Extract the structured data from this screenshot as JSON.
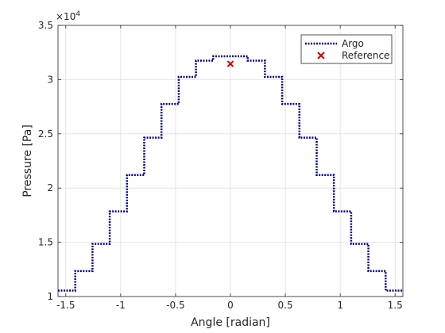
{
  "chart_data": {
    "type": "line",
    "xlabel": "Angle [radian]",
    "ylabel": "Pressure [Pa]",
    "xlim": [
      -1.5708,
      1.5708
    ],
    "ylim": [
      10000,
      35000
    ],
    "x_ticks": [
      -1.5,
      -1,
      -0.5,
      0,
      0.5,
      1,
      1.5
    ],
    "x_tick_labels": [
      "-1.5",
      "-1",
      "-0.5",
      "0",
      "0.5",
      "1",
      "1.5"
    ],
    "y_ticks": [
      10000,
      15000,
      20000,
      25000,
      30000,
      35000
    ],
    "y_tick_labels": [
      "1",
      "1.5",
      "2",
      "2.5",
      "3",
      "3.5"
    ],
    "y_exponent_base": "×10",
    "y_exponent_power": "4",
    "grid": true,
    "legend_position": "top-right",
    "series": [
      {
        "name": "Argo",
        "style": "dotted-step",
        "color": "#00008b",
        "edges": [
          -1.5708,
          -1.4137,
          -1.2566,
          -1.0996,
          -0.9425,
          -0.7854,
          -0.6283,
          -0.4712,
          -0.3142,
          -0.1571,
          0.1571,
          0.3142,
          0.4712,
          0.6283,
          0.7854,
          0.9425,
          1.0996,
          1.2566,
          1.4137,
          1.5708
        ],
        "values": [
          10550,
          12350,
          14850,
          17850,
          21200,
          24650,
          27750,
          30250,
          31750,
          32150,
          31750,
          30250,
          27750,
          24650,
          21200,
          17850,
          14850,
          12350,
          10550
        ]
      },
      {
        "name": "Reference",
        "style": "marker-x",
        "color": "#cc0000",
        "x": [
          0
        ],
        "y": [
          31450
        ]
      }
    ]
  }
}
